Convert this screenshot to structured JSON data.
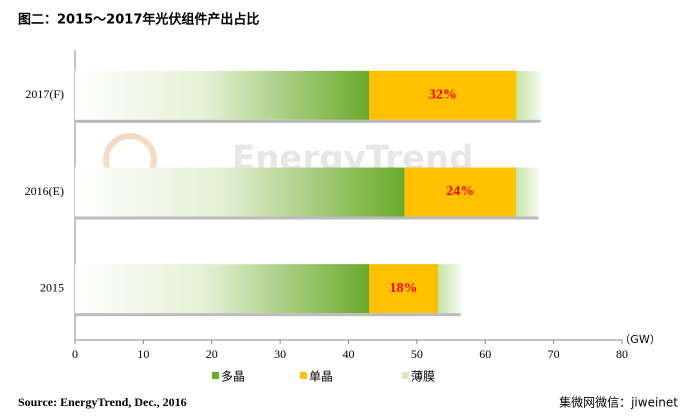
{
  "chart_data": {
    "type": "stacked-barh",
    "title": "图二：2015～2017年光伏组件产出占比",
    "unit_label": "（GW）",
    "source": "Source: EnergyTrend, Dec., 2016",
    "watermark": "EnergyTrend",
    "credit": "集微网微信：jiweinet",
    "categories": [
      "2017(F)",
      "2016(E)",
      "2015"
    ],
    "series": [
      {
        "name": "多晶",
        "color": "#6aaa2a",
        "values": [
          43.0,
          48.2,
          43.0
        ]
      },
      {
        "name": "单晶",
        "color": "#ffc000",
        "values": [
          21.6,
          16.3,
          10.1
        ]
      },
      {
        "name": "薄膜",
        "color": "#d6ecbe",
        "values": [
          3.5,
          3.3,
          3.3
        ]
      }
    ],
    "share_labels": [
      "32%",
      "24%",
      "18%"
    ],
    "share_series": 1,
    "share_color": "#ff0000",
    "xlim": [
      0,
      80
    ],
    "xticks": [
      0,
      10,
      20,
      30,
      40,
      50,
      60,
      70,
      80
    ],
    "grid": false
  }
}
